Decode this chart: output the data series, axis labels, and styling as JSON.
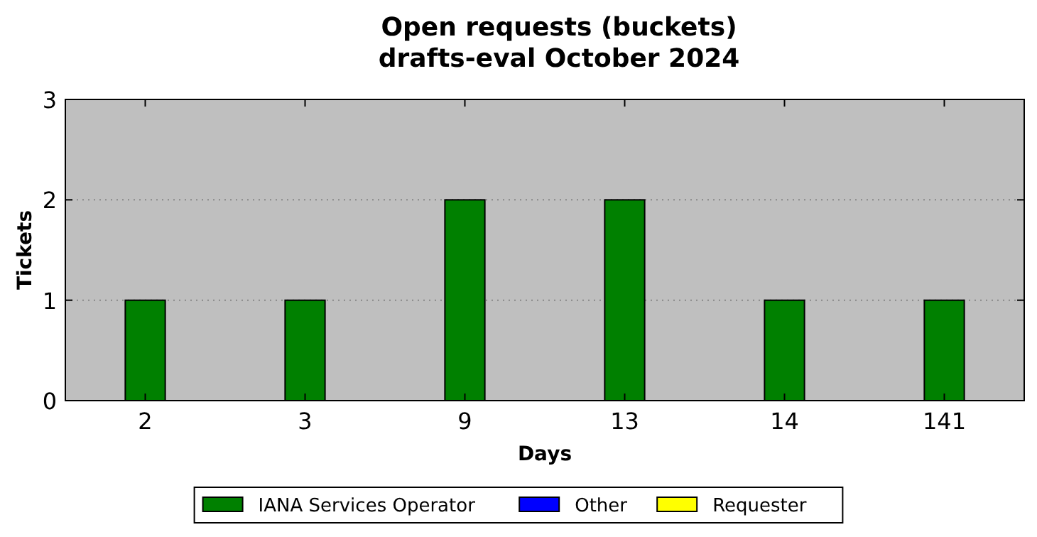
{
  "chart_data": {
    "type": "bar",
    "title": "Open requests (buckets)",
    "subtitle": "drafts-eval October 2024",
    "xlabel": "Days",
    "ylabel": "Tickets",
    "categories": [
      "2",
      "3",
      "9",
      "13",
      "14",
      "141"
    ],
    "series": [
      {
        "name": "IANA Services Operator",
        "color": "#008000",
        "values": [
          1,
          1,
          2,
          2,
          1,
          1
        ]
      },
      {
        "name": "Other",
        "color": "#0000ff",
        "values": [
          0,
          0,
          0,
          0,
          0,
          0
        ]
      },
      {
        "name": "Requester",
        "color": "#ffff00",
        "values": [
          0,
          0,
          0,
          0,
          0,
          0
        ]
      }
    ],
    "stacked": true,
    "ylim": [
      0,
      3
    ],
    "yticks": [
      0,
      1,
      2,
      3
    ],
    "grid": "y",
    "legend": "bottom"
  }
}
